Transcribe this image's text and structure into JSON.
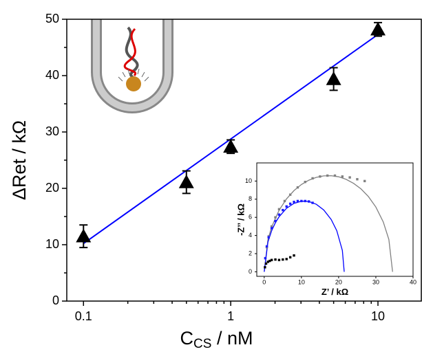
{
  "chart_data": [
    {
      "type": "scatter",
      "log_x": true,
      "y_label": "ΔRet / kΩ",
      "x_label": [
        "C",
        "CS",
        " / nM"
      ],
      "xlim": [
        0.077,
        19.7
      ],
      "xticks": [
        0.1,
        1,
        10
      ],
      "xminor_ticks": [
        0.2,
        0.3,
        0.4,
        0.5,
        0.6,
        0.7,
        0.8,
        0.9,
        2,
        3,
        4,
        5,
        6,
        7,
        8,
        9
      ],
      "ylim": [
        0,
        50
      ],
      "yticks": [
        0,
        10,
        20,
        30,
        40,
        50
      ],
      "yminor_ticks": [
        5,
        15,
        25,
        35,
        45
      ],
      "series": [
        {
          "color": "#000000",
          "marker": "triangle",
          "x": [
            0.1,
            0.5,
            1,
            5,
            10
          ],
          "values": [
            11.5,
            21.1,
            27.4,
            39.4,
            48.2
          ],
          "errors": [
            2,
            2,
            1.2,
            2,
            1.2
          ]
        }
      ],
      "lines": [
        {
          "color": "#0000ff",
          "x": [
            0.1,
            10
          ],
          "values": [
            10.2,
            47.3
          ]
        }
      ]
    },
    {
      "type": "scatter",
      "log_x": false,
      "y_label": "-Z’’ / kΩ",
      "x_label": [
        "Z’ / kΩ"
      ],
      "xlim": [
        -2,
        40
      ],
      "xticks": [
        0,
        10,
        20,
        30,
        40
      ],
      "ylim": [
        -0.5,
        12
      ],
      "yticks": [
        0,
        2,
        4,
        6,
        8,
        10
      ],
      "series": [
        {
          "color": "#808080",
          "marker": "square",
          "x": [
            0.3,
            0.7,
            1.2,
            2,
            3,
            4,
            5.5,
            7,
            9,
            11,
            13,
            15,
            17,
            19,
            21,
            23,
            25,
            27
          ],
          "values": [
            1.5,
            2.7,
            3.9,
            5,
            6,
            6.9,
            7.8,
            8.5,
            9.3,
            9.9,
            10.3,
            10.5,
            10.6,
            10.6,
            10.5,
            10.4,
            10.2,
            10.0
          ]
        },
        {
          "color": "#1a1aff",
          "marker": "square",
          "x": [
            0.3,
            0.7,
            1.2,
            2,
            3,
            4,
            5,
            6,
            7,
            8,
            9,
            10,
            11,
            12,
            13
          ],
          "values": [
            1.5,
            2.8,
            3.8,
            4.8,
            5.6,
            6.3,
            6.8,
            7.2,
            7.5,
            7.7,
            7.8,
            7.8,
            7.8,
            7.75,
            7.6
          ]
        },
        {
          "color": "#000000",
          "marker": "square",
          "x": [
            0.2,
            0.5,
            1,
            1.5,
            2,
            3,
            4,
            5,
            6,
            7,
            8
          ],
          "values": [
            0.5,
            0.9,
            1.1,
            1.2,
            1.3,
            1.35,
            1.3,
            1.35,
            1.4,
            1.6,
            1.8
          ]
        }
      ],
      "lines": [
        {
          "color": "#808080",
          "x": [
            0,
            1,
            2,
            4,
            6,
            8,
            10,
            12,
            14,
            16,
            18,
            20,
            22,
            24,
            26,
            28,
            30,
            32,
            33.5,
            34.5
          ],
          "values": [
            0,
            3.56,
            4.95,
            6.79,
            8.04,
            8.95,
            9.62,
            10.1,
            10.41,
            10.57,
            10.59,
            10.47,
            10.19,
            9.75,
            9.14,
            8.29,
            7.14,
            5.49,
            3.56,
            0
          ]
        },
        {
          "color": "#0000ff",
          "x": [
            0,
            1,
            2,
            3,
            4,
            6,
            8,
            10,
            12,
            14,
            16,
            18,
            19.5,
            21,
            21.5
          ],
          "values": [
            0,
            3.29,
            4.53,
            5.41,
            6.07,
            7.0,
            7.54,
            7.78,
            7.75,
            7.44,
            6.81,
            5.76,
            4.53,
            2.35,
            0
          ]
        }
      ]
    }
  ]
}
